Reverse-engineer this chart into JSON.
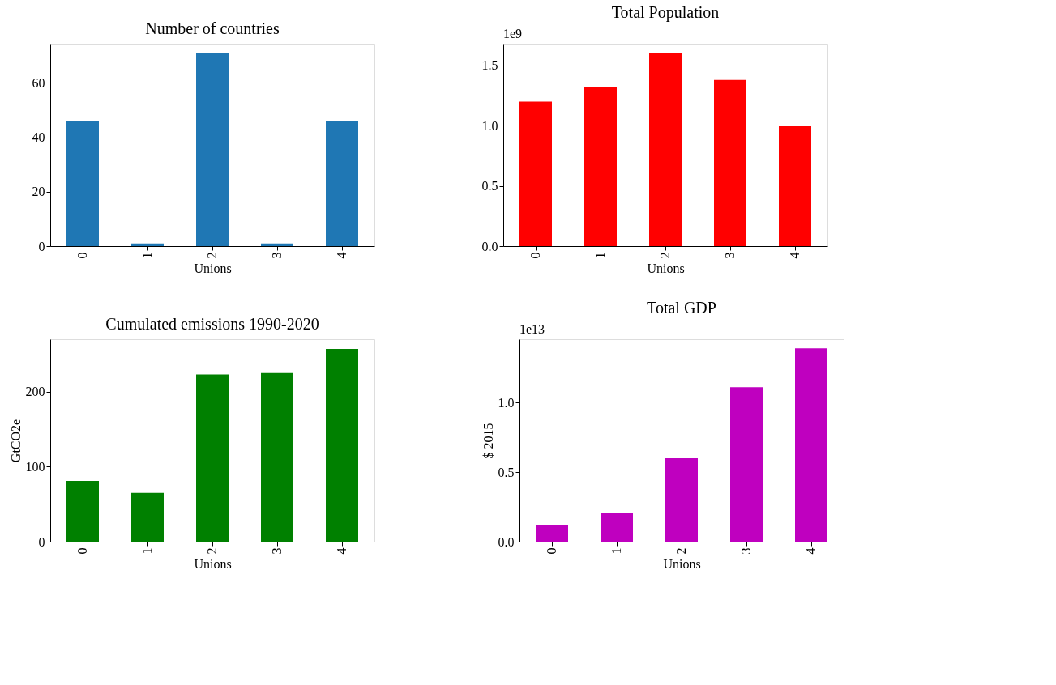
{
  "chart_data": [
    {
      "type": "bar",
      "title": "Number of countries",
      "xlabel": "Unions",
      "categories": [
        "0",
        "1",
        "2",
        "3",
        "4"
      ],
      "values": [
        46,
        1,
        71,
        1,
        46
      ],
      "color": "#1f77b4",
      "ylim": [
        0,
        74.4
      ],
      "yticks": [
        0,
        20,
        40,
        60
      ],
      "grid": false
    },
    {
      "type": "bar",
      "title": "Total Population",
      "xlabel": "Unions",
      "categories": [
        "0",
        "1",
        "2",
        "3",
        "4"
      ],
      "values": [
        1.2,
        1.32,
        1.6,
        1.38,
        1.0
      ],
      "color": "#ff0000",
      "ylim": [
        0,
        1.68
      ],
      "yticks": [
        {
          "value": 0,
          "label": "0.0"
        },
        {
          "value": 0.5,
          "label": "0.5"
        },
        {
          "value": 1.0,
          "label": "1.0"
        },
        {
          "value": 1.5,
          "label": "1.5"
        }
      ],
      "annotations": [
        "1e9"
      ],
      "grid": false
    },
    {
      "type": "bar",
      "title": "Cumulated emissions 1990-2020",
      "xlabel": "Unions",
      "ylabel": "GtCO2e",
      "categories": [
        "0",
        "1",
        "2",
        "3",
        "4"
      ],
      "values": [
        81,
        65,
        223,
        225,
        257
      ],
      "color": "#008000",
      "ylim": [
        0,
        270
      ],
      "yticks": [
        0,
        100,
        200
      ],
      "grid": false
    },
    {
      "type": "bar",
      "title": "Total GDP",
      "xlabel": "Unions",
      "ylabel": "$ 2015",
      "categories": [
        "0",
        "1",
        "2",
        "3",
        "4"
      ],
      "values": [
        0.12,
        0.21,
        0.6,
        1.11,
        1.39
      ],
      "color": "#bf00bf",
      "ylim": [
        0,
        1.455
      ],
      "yticks": [
        {
          "value": 0,
          "label": "0.0"
        },
        {
          "value": 0.5,
          "label": "0.5"
        },
        {
          "value": 1.0,
          "label": "1.0"
        }
      ],
      "annotations": [
        "1e13"
      ],
      "grid": false
    }
  ]
}
